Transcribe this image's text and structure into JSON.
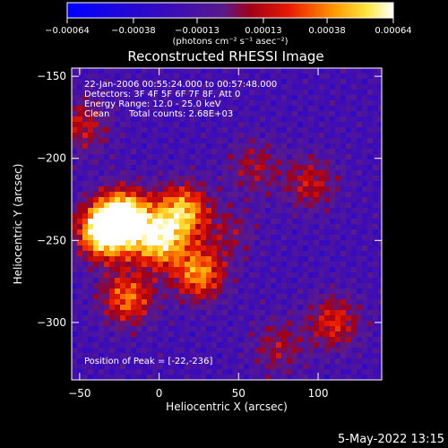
{
  "chart_data": {
    "type": "heatmap",
    "title": "Reconstructed RHESSI Image",
    "xlabel": "Heliocentric X (arcsec)",
    "ylabel": "Heliocentric Y (arcsec)",
    "xlim": [
      -55,
      140
    ],
    "ylim": [
      -335,
      -145
    ],
    "x_ticks": [
      -50,
      0,
      50,
      100
    ],
    "y_ticks": [
      -150,
      -200,
      -250,
      -300
    ],
    "colorbar": {
      "range": [
        -0.00064,
        0.00064
      ],
      "ticks": [
        -0.00064,
        -0.00038,
        -0.00013,
        0.00013,
        0.00038,
        0.00064
      ],
      "tick_labels": [
        "−0.00064",
        "−0.00038",
        "−0.00013",
        "0.00013",
        "0.00038",
        "0.00064"
      ],
      "unit_label": "(photons cm⁻² s⁻¹ asec⁻²)"
    },
    "annotations": [
      "22-Jan-2006 00:55:24.000 to 00:57:48.000",
      "Detectors: 3F 4F 5F 6F 7F 8F, Att 0",
      "Energy Range: 12.0 - 25.0 keV",
      "Clean",
      "Total counts: 2.68E+03",
      "Position of Peak = [-22,-236]"
    ],
    "bright_regions": [
      {
        "x": -35,
        "y": -245,
        "level": 0.95
      },
      {
        "x": -22,
        "y": -236,
        "level": 1.0
      },
      {
        "x": 0,
        "y": -250,
        "level": 0.85
      },
      {
        "x": 15,
        "y": -232,
        "level": 0.8
      },
      {
        "x": 25,
        "y": -270,
        "level": 0.75
      },
      {
        "x": -20,
        "y": -285,
        "level": 0.7
      },
      {
        "x": -48,
        "y": -180,
        "level": 0.55
      },
      {
        "x": 60,
        "y": -205,
        "level": 0.5
      },
      {
        "x": 95,
        "y": -215,
        "level": 0.55
      },
      {
        "x": 110,
        "y": -300,
        "level": 0.6
      },
      {
        "x": 75,
        "y": -315,
        "level": 0.5
      },
      {
        "x": 45,
        "y": -245,
        "level": 0.45
      }
    ],
    "grid": false
  },
  "footer": {
    "date": "5-May-2022 13:15"
  }
}
